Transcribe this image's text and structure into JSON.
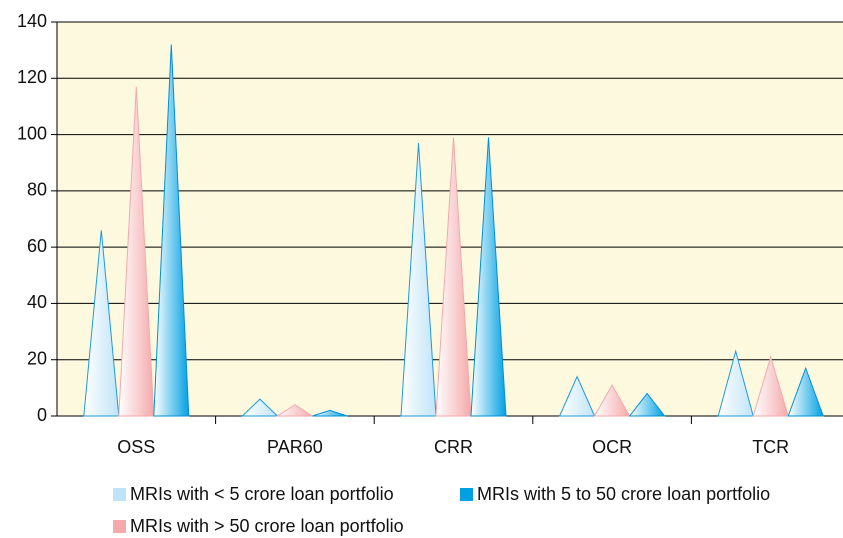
{
  "chart_data": {
    "type": "bar",
    "categories": [
      "OSS",
      "PAR60",
      "CRR",
      "OCR",
      "TCR"
    ],
    "series": [
      {
        "name": "MRIs with < 5 crore loan portfolio",
        "color": "#bfe4f8",
        "values": [
          66,
          6,
          97,
          14,
          23
        ]
      },
      {
        "name": "MRIs with > 50 crore loan portfolio",
        "color": "#f4a9ab",
        "values": [
          117,
          4,
          99,
          11,
          21
        ]
      },
      {
        "name": "MRIs with 5 to 50 crore loan portfolio",
        "color": "#00a0e3",
        "values": [
          132,
          2,
          99,
          8,
          17
        ]
      }
    ],
    "ylim": [
      0,
      140
    ],
    "yticks": [
      0,
      20,
      40,
      60,
      80,
      100,
      120,
      140
    ],
    "grid": true
  }
}
